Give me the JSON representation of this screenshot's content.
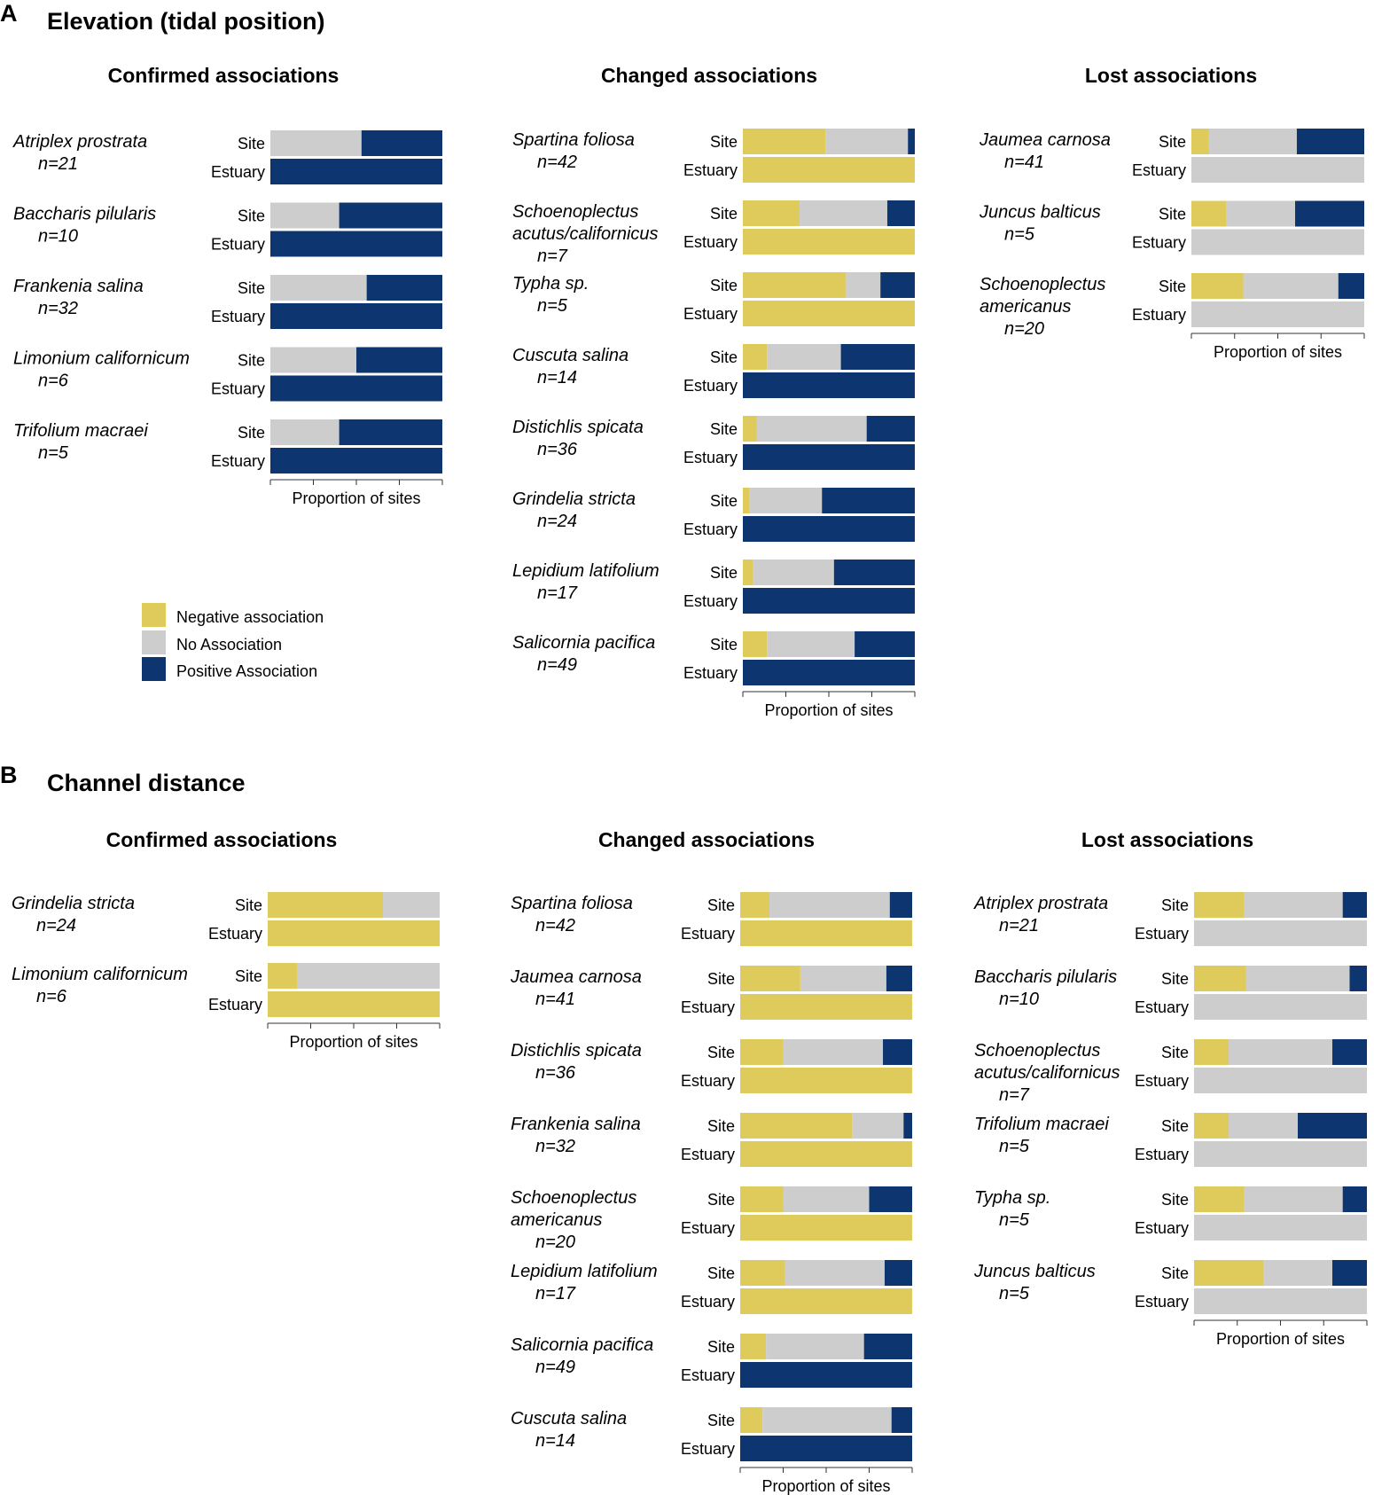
{
  "colors": {
    "negative": "#dfcb5c",
    "none": "#cdcdcd",
    "positive": "#0d3670"
  },
  "row_labels": {
    "site": "Site",
    "estuary": "Estuary"
  },
  "axis_label": "Proportion of sites",
  "legend": {
    "items": [
      {
        "key": "negative",
        "label": "Negative association"
      },
      {
        "key": "none",
        "label": "No Association"
      },
      {
        "key": "positive",
        "label": "Positive Association"
      }
    ]
  },
  "chart_data": [
    {
      "type": "bar",
      "stacked": true,
      "orientation": "horizontal",
      "panel": "A",
      "title": "Elevation (tidal position)",
      "xlabel": "Proportion of sites",
      "xlim": [
        0,
        1
      ],
      "series_order": [
        "negative",
        "none",
        "positive"
      ],
      "groups": [
        {
          "title": "Confirmed associations",
          "species": [
            {
              "name": "Atriplex prostrata",
              "n": "n=21",
              "site": [
                0,
                0.53,
                0.47
              ],
              "estuary": [
                0,
                0,
                1
              ]
            },
            {
              "name": "Baccharis pilularis",
              "n": "n=10",
              "site": [
                0,
                0.4,
                0.6
              ],
              "estuary": [
                0,
                0,
                1
              ]
            },
            {
              "name": "Frankenia salina",
              "n": "n=32",
              "site": [
                0,
                0.56,
                0.44
              ],
              "estuary": [
                0,
                0,
                1
              ]
            },
            {
              "name": "Limonium californicum",
              "n": "n=6",
              "site": [
                0,
                0.5,
                0.5
              ],
              "estuary": [
                0,
                0,
                1
              ]
            },
            {
              "name": "Trifolium macraei",
              "n": "n=5",
              "site": [
                0,
                0.4,
                0.6
              ],
              "estuary": [
                0,
                0,
                1
              ]
            }
          ]
        },
        {
          "title": "Changed associations",
          "species": [
            {
              "name": "Spartina foliosa",
              "n": "n=42",
              "site": [
                0.48,
                0.48,
                0.04
              ],
              "estuary": [
                1,
                0,
                0
              ]
            },
            {
              "name": "Schoenoplectus acutus/californicus",
              "n": "n=7",
              "site": [
                0.33,
                0.51,
                0.16
              ],
              "estuary": [
                1,
                0,
                0
              ]
            },
            {
              "name": "Typha sp.",
              "n": "n=5",
              "site": [
                0.6,
                0.2,
                0.2
              ],
              "estuary": [
                1,
                0,
                0
              ]
            },
            {
              "name": "Cuscuta salina",
              "n": "n=14",
              "site": [
                0.14,
                0.43,
                0.43
              ],
              "estuary": [
                0,
                0,
                1
              ]
            },
            {
              "name": "Distichlis spicata",
              "n": "n=36",
              "site": [
                0.08,
                0.64,
                0.28
              ],
              "estuary": [
                0,
                0,
                1
              ]
            },
            {
              "name": "Grindelia stricta",
              "n": "n=24",
              "site": [
                0.04,
                0.42,
                0.54
              ],
              "estuary": [
                0,
                0,
                1
              ]
            },
            {
              "name": "Lepidium latifolium",
              "n": "n=17",
              "site": [
                0.06,
                0.47,
                0.47
              ],
              "estuary": [
                0,
                0,
                1
              ]
            },
            {
              "name": "Salicornia pacifica",
              "n": "n=49",
              "site": [
                0.14,
                0.51,
                0.35
              ],
              "estuary": [
                0,
                0,
                1
              ]
            }
          ]
        },
        {
          "title": "Lost associations",
          "species": [
            {
              "name": "Jaumea carnosa",
              "n": "n=41",
              "site": [
                0.1,
                0.51,
                0.39
              ],
              "estuary": [
                0,
                1,
                0
              ]
            },
            {
              "name": "Juncus balticus",
              "n": "n=5",
              "site": [
                0.2,
                0.4,
                0.4
              ],
              "estuary": [
                0,
                1,
                0
              ]
            },
            {
              "name": "Schoenoplectus americanus",
              "n": "n=20",
              "site": [
                0.3,
                0.55,
                0.15
              ],
              "estuary": [
                0,
                1,
                0
              ]
            }
          ]
        }
      ]
    },
    {
      "type": "bar",
      "stacked": true,
      "orientation": "horizontal",
      "panel": "B",
      "title": "Channel distance",
      "xlabel": "Proportion of sites",
      "xlim": [
        0,
        1
      ],
      "series_order": [
        "negative",
        "none",
        "positive"
      ],
      "groups": [
        {
          "title": "Confirmed associations",
          "species": [
            {
              "name": "Grindelia stricta",
              "n": "n=24",
              "site": [
                0.67,
                0.33,
                0
              ],
              "estuary": [
                1,
                0,
                0
              ]
            },
            {
              "name": "Limonium californicum",
              "n": "n=6",
              "site": [
                0.17,
                0.83,
                0
              ],
              "estuary": [
                1,
                0,
                0
              ]
            }
          ]
        },
        {
          "title": "Changed associations",
          "species": [
            {
              "name": "Spartina foliosa",
              "n": "n=42",
              "site": [
                0.17,
                0.7,
                0.13
              ],
              "estuary": [
                1,
                0,
                0
              ]
            },
            {
              "name": "Jaumea carnosa",
              "n": "n=41",
              "site": [
                0.35,
                0.5,
                0.15
              ],
              "estuary": [
                1,
                0,
                0
              ]
            },
            {
              "name": "Distichlis spicata",
              "n": "n=36",
              "site": [
                0.25,
                0.58,
                0.17
              ],
              "estuary": [
                1,
                0,
                0
              ]
            },
            {
              "name": "Frankenia salina",
              "n": "n=32",
              "site": [
                0.65,
                0.3,
                0.05
              ],
              "estuary": [
                1,
                0,
                0
              ]
            },
            {
              "name": "Schoenoplectus americanus",
              "n": "n=20",
              "site": [
                0.25,
                0.5,
                0.25
              ],
              "estuary": [
                1,
                0,
                0
              ]
            },
            {
              "name": "Lepidium latifolium",
              "n": "n=17",
              "site": [
                0.26,
                0.58,
                0.16
              ],
              "estuary": [
                1,
                0,
                0
              ]
            },
            {
              "name": "Salicornia pacifica",
              "n": "n=49",
              "site": [
                0.15,
                0.57,
                0.28
              ],
              "estuary": [
                0,
                0,
                1
              ]
            },
            {
              "name": "Cuscuta salina",
              "n": "n=14",
              "site": [
                0.13,
                0.75,
                0.12
              ],
              "estuary": [
                0,
                0,
                1
              ]
            }
          ]
        },
        {
          "title": "Lost associations",
          "species": [
            {
              "name": "Atriplex prostrata",
              "n": "n=21",
              "site": [
                0.29,
                0.57,
                0.14
              ],
              "estuary": [
                0,
                1,
                0
              ]
            },
            {
              "name": "Baccharis pilularis",
              "n": "n=10",
              "site": [
                0.3,
                0.6,
                0.1
              ],
              "estuary": [
                0,
                1,
                0
              ]
            },
            {
              "name": "Schoenoplectus acutus/californicus",
              "n": "n=7",
              "site": [
                0.2,
                0.6,
                0.2
              ],
              "estuary": [
                0,
                1,
                0
              ]
            },
            {
              "name": "Trifolium macraei",
              "n": "n=5",
              "site": [
                0.2,
                0.4,
                0.4
              ],
              "estuary": [
                0,
                1,
                0
              ]
            },
            {
              "name": "Typha sp.",
              "n": "n=5",
              "site": [
                0.29,
                0.57,
                0.14
              ],
              "estuary": [
                0,
                1,
                0
              ]
            },
            {
              "name": "Juncus balticus",
              "n": "n=5",
              "site": [
                0.4,
                0.4,
                0.2
              ],
              "estuary": [
                0,
                1,
                0
              ]
            }
          ]
        }
      ]
    }
  ]
}
